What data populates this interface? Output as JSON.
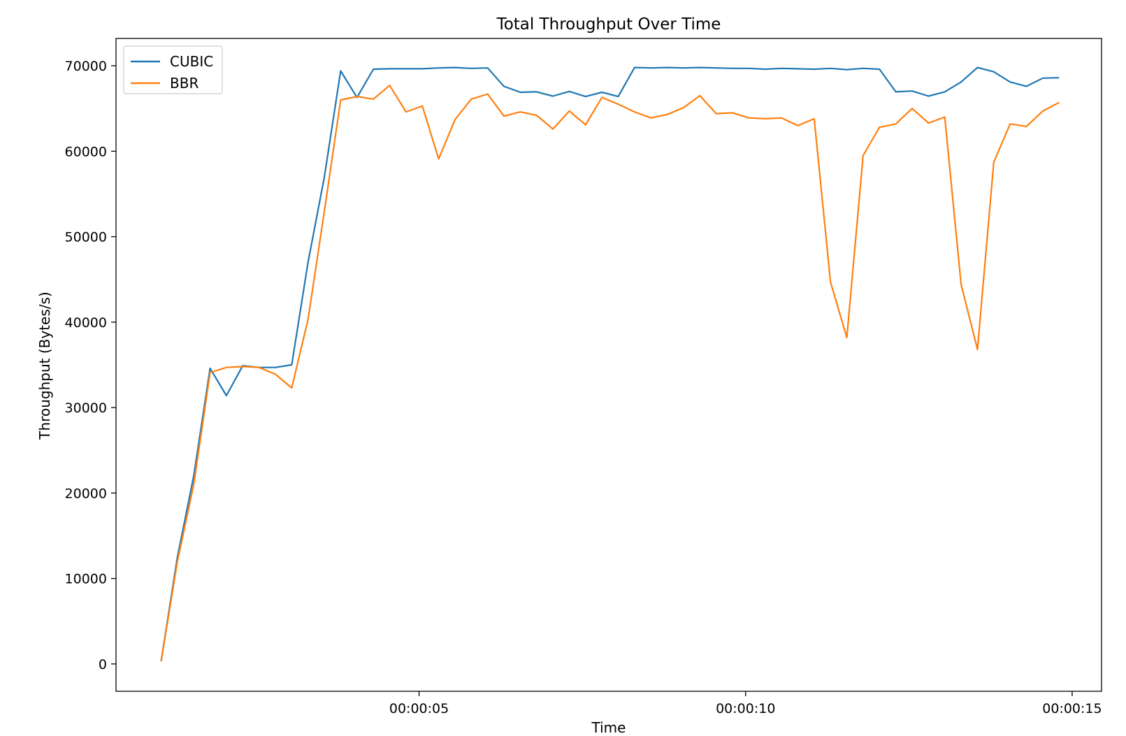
{
  "chart_data": {
    "type": "line",
    "title": "Total Throughput Over Time",
    "xlabel": "Time",
    "ylabel": "Throughput (Bytes/s)",
    "x_unit": "seconds",
    "xlim": [
      0.36,
      15.45
    ],
    "ylim": [
      -3200,
      73200
    ],
    "x_ticks": [
      {
        "value": 5,
        "label": "00:00:05"
      },
      {
        "value": 10,
        "label": "00:00:10"
      },
      {
        "value": 15,
        "label": "00:00:15"
      }
    ],
    "y_ticks": [
      {
        "value": 0,
        "label": "0"
      },
      {
        "value": 10000,
        "label": "10000"
      },
      {
        "value": 20000,
        "label": "20000"
      },
      {
        "value": 30000,
        "label": "30000"
      },
      {
        "value": 40000,
        "label": "40000"
      },
      {
        "value": 50000,
        "label": "50000"
      },
      {
        "value": 60000,
        "label": "60000"
      },
      {
        "value": 70000,
        "label": "70000"
      }
    ],
    "grid": false,
    "legend_position": "top-left",
    "x": [
      1.05,
      1.3,
      1.55,
      1.8,
      2.05,
      2.3,
      2.55,
      2.8,
      3.05,
      3.3,
      3.55,
      3.8,
      4.05,
      4.3,
      4.55,
      4.8,
      5.05,
      5.3,
      5.55,
      5.8,
      6.05,
      6.3,
      6.55,
      6.8,
      7.05,
      7.3,
      7.55,
      7.8,
      8.05,
      8.3,
      8.55,
      8.8,
      9.05,
      9.3,
      9.55,
      9.8,
      10.05,
      10.3,
      10.55,
      10.8,
      11.05,
      11.3,
      11.55,
      11.8,
      12.05,
      12.3,
      12.55,
      12.8,
      13.05,
      13.3,
      13.55,
      13.8,
      14.05,
      14.3,
      14.55,
      14.8
    ],
    "series": [
      {
        "name": "CUBIC",
        "color": "#1f77b4",
        "values": [
          300,
          12500,
          22000,
          34600,
          31400,
          34900,
          34700,
          34700,
          35000,
          47000,
          57000,
          69400,
          66300,
          69600,
          69650,
          69650,
          69650,
          69750,
          69800,
          69700,
          69750,
          67600,
          66900,
          66950,
          66450,
          67000,
          66400,
          66900,
          66400,
          69800,
          69750,
          69800,
          69750,
          69800,
          69750,
          69700,
          69700,
          69600,
          69700,
          69650,
          69600,
          69700,
          69550,
          69700,
          69600,
          66950,
          67050,
          66450,
          66950,
          68100,
          69800,
          69300,
          68100,
          67600,
          68550,
          68600
        ]
      },
      {
        "name": "BBR",
        "color": "#ff7f0e",
        "values": [
          300,
          12000,
          21000,
          34100,
          34700,
          34800,
          34700,
          33900,
          32300,
          40300,
          53000,
          66000,
          66400,
          66100,
          67700,
          64600,
          65300,
          59100,
          63700,
          66100,
          66700,
          64100,
          64600,
          64200,
          62600,
          64700,
          63100,
          66300,
          65500,
          64600,
          63900,
          64300,
          65100,
          66500,
          64400,
          64500,
          63900,
          63800,
          63900,
          63000,
          63800,
          44700,
          38200,
          59500,
          62800,
          63200,
          65000,
          63300,
          64000,
          44400,
          36800,
          58700,
          63200,
          62900,
          64700,
          65700
        ]
      }
    ]
  }
}
